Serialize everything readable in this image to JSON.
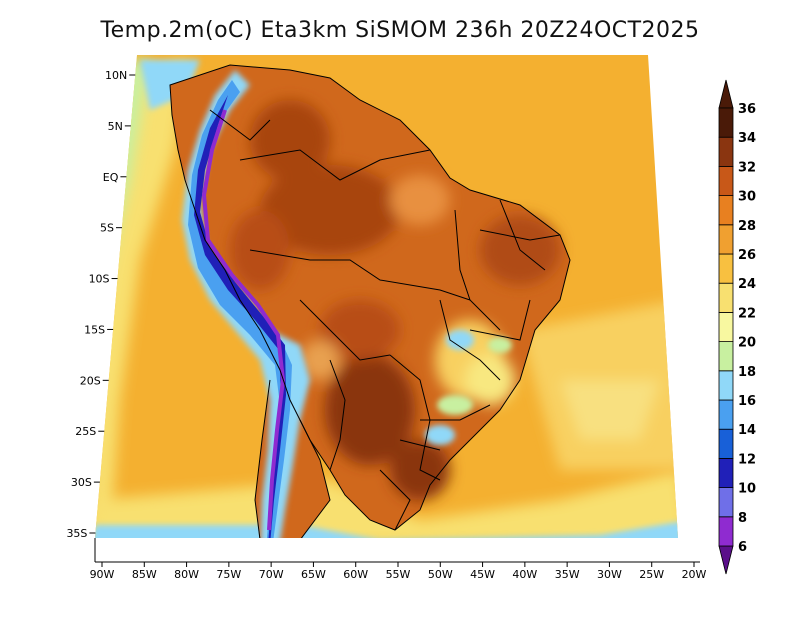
{
  "title": "Temp.2m(oC) Eta3km SiSMOM 236h 20Z24OCT2025",
  "map": {
    "lat_labels": [
      "10N",
      "5N",
      "EQ",
      "5S",
      "10S",
      "15S",
      "20S",
      "25S",
      "30S",
      "35S"
    ],
    "lat_values": [
      10,
      5,
      0,
      -5,
      -10,
      -15,
      -20,
      -25,
      -30,
      -35
    ],
    "lon_labels": [
      "90W",
      "85W",
      "80W",
      "75W",
      "70W",
      "65W",
      "60W",
      "55W",
      "50W",
      "45W",
      "40W",
      "35W",
      "30W",
      "25W",
      "20W"
    ],
    "lon_values": [
      -90,
      -85,
      -80,
      -75,
      -70,
      -65,
      -60,
      -55,
      -50,
      -45,
      -40,
      -35,
      -30,
      -25,
      -20
    ],
    "lat_range": [
      -38,
      12
    ],
    "lon_range": [
      -91,
      -19
    ]
  },
  "colorbar": {
    "levels": [
      "6",
      "8",
      "10",
      "12",
      "14",
      "16",
      "18",
      "20",
      "22",
      "24",
      "26",
      "28",
      "30",
      "32",
      "34",
      "36"
    ],
    "colors": [
      "#5a0f8a",
      "#8f2bd0",
      "#6f6fe8",
      "#2020b8",
      "#1860d8",
      "#4aa0f0",
      "#90d8f8",
      "#c8f0a0",
      "#f8f8a0",
      "#f8e070",
      "#f8c040",
      "#f0a030",
      "#e88020",
      "#c85818",
      "#8a3510",
      "#4a1a08"
    ]
  }
}
